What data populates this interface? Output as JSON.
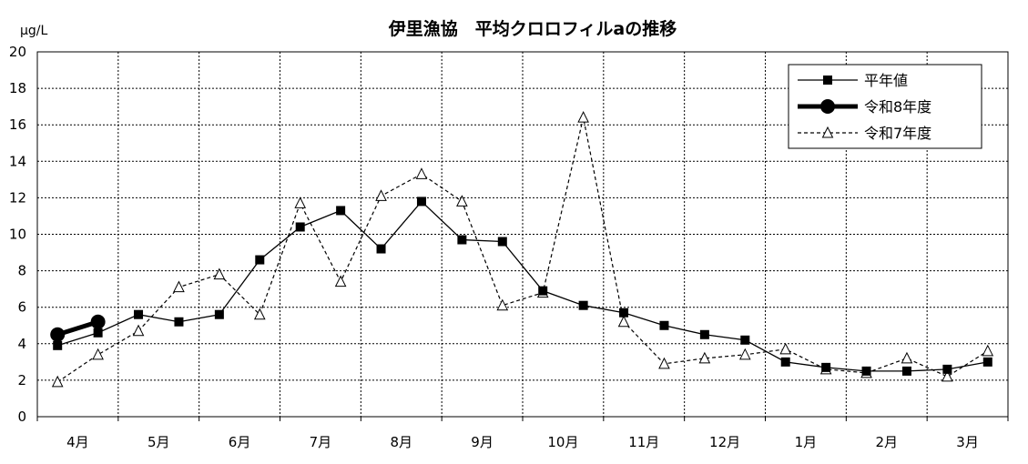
{
  "chart_data": {
    "type": "line",
    "title": "伊里漁協　平均クロロフィルaの推移",
    "ylabel": "μg/L",
    "xlabel": "",
    "ylim": [
      0,
      20
    ],
    "yticks": [
      "0",
      "2",
      "4",
      "6",
      "8",
      "10",
      "12",
      "14",
      "16",
      "18",
      "20"
    ],
    "months": [
      "4月",
      "5月",
      "6月",
      "7月",
      "8月",
      "9月",
      "10月",
      "11月",
      "12月",
      "1月",
      "2月",
      "3月"
    ],
    "points_per_month": 2,
    "grid": true,
    "legend_position": "top-right",
    "series": [
      {
        "name": "平年値",
        "style": "solid-square",
        "color": "#000000",
        "values": [
          3.9,
          4.6,
          5.6,
          5.2,
          5.6,
          8.6,
          10.4,
          11.3,
          9.2,
          11.8,
          9.7,
          9.6,
          6.9,
          6.1,
          5.7,
          5.0,
          4.5,
          4.2,
          3.0,
          2.7,
          2.5,
          2.5,
          2.6,
          3.0
        ]
      },
      {
        "name": "令和8年度",
        "style": "thick-circle",
        "color": "#000000",
        "values": [
          4.5,
          5.2
        ]
      },
      {
        "name": "令和7年度",
        "style": "dashed-triangle",
        "color": "#000000",
        "values": [
          1.9,
          3.4,
          4.7,
          7.1,
          7.8,
          5.6,
          11.7,
          7.4,
          12.1,
          13.3,
          11.8,
          6.1,
          6.8,
          16.4,
          5.2,
          2.9,
          3.2,
          3.4,
          3.7,
          2.6,
          2.4,
          3.2,
          2.2,
          3.6
        ]
      }
    ]
  }
}
